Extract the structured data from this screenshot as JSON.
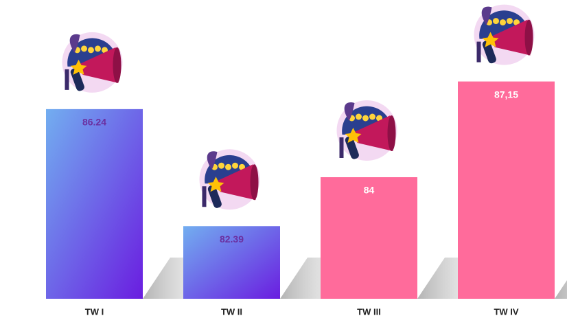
{
  "chart_data": {
    "type": "bar",
    "categories": [
      "TW I",
      "TW II",
      "TW III",
      "TW IV"
    ],
    "values": [
      86.24,
      82.39,
      84,
      87.15
    ],
    "value_labels": [
      "86.24",
      "82.39",
      "84",
      "87,15"
    ],
    "colors": [
      "#6a1de0",
      "#6a1de0",
      "#ff6b9b",
      "#ff6b9b"
    ],
    "gradient": [
      true,
      true,
      false,
      false
    ],
    "gradient_from": "#72aef0",
    "label_colors": [
      "#6b2fa0",
      "#6b2fa0",
      "#ffffff",
      "#ffffff"
    ],
    "ylim": [
      80,
      88
    ]
  }
}
